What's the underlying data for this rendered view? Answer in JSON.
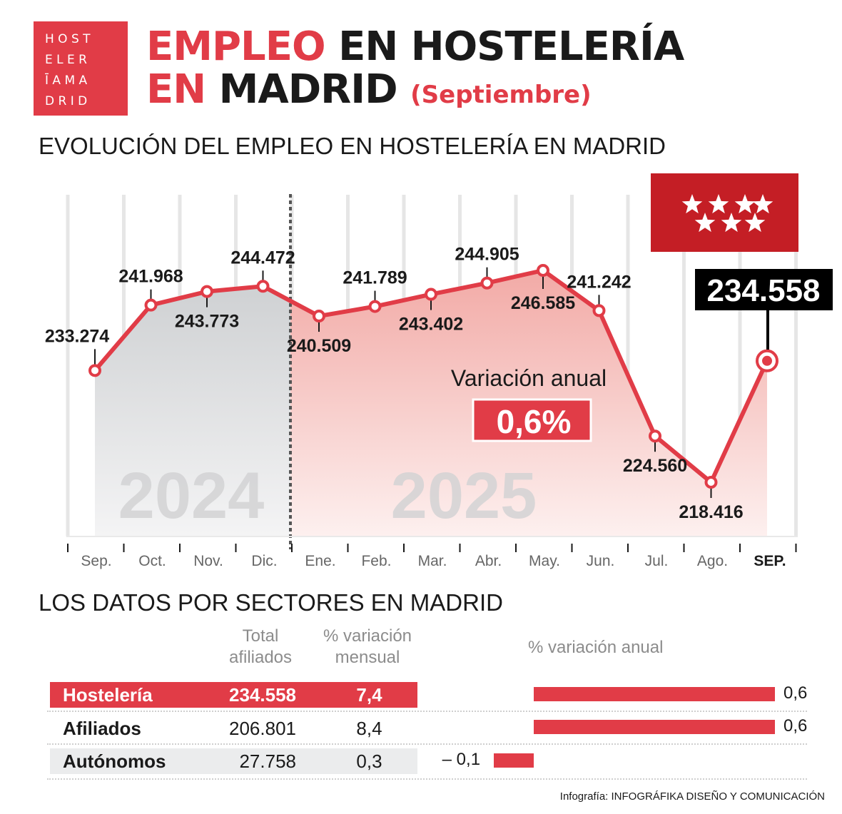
{
  "logo": {
    "rows": [
      "H O S T",
      "E L E R",
      "Ī A M A",
      "D R I D"
    ]
  },
  "header": {
    "title_part1": "EMPLEO",
    "title_part2": "EN HOSTELERÍA",
    "title_part3": "EN",
    "title_part4": "MADRID",
    "month": "(Septiembre)"
  },
  "section1_title": "EVOLUCIÓN DEL EMPLEO EN HOSTELERÍA EN MADRID",
  "section2_title": "LOS DATOS POR SECTORES EN MADRID",
  "colors": {
    "accent": "#e13c47",
    "flag": "#c41e25",
    "gray_area": "#d9dadb"
  },
  "chart_data": {
    "type": "line",
    "title": "EVOLUCIÓN DEL EMPLEO EN HOSTELERÍA EN MADRID",
    "categories": [
      "Sep.",
      "Oct.",
      "Nov.",
      "Dic.",
      "Ene.",
      "Feb.",
      "Mar.",
      "Abr.",
      "May.",
      "Jun.",
      "Jul.",
      "Ago.",
      "SEP."
    ],
    "values": [
      233274,
      241968,
      243773,
      244472,
      240509,
      241789,
      243402,
      244905,
      246585,
      241242,
      224560,
      218416,
      234558
    ],
    "labels": [
      "233.274",
      "241.968",
      "243.773",
      "244.472",
      "240.509",
      "241.789",
      "243.402",
      "244.905",
      "246.585",
      "241.242",
      "224.560",
      "218.416",
      "234.558"
    ],
    "label_sides": [
      "above",
      "above",
      "below",
      "above",
      "below",
      "above",
      "below",
      "above",
      "below",
      "above",
      "below",
      "below",
      "above"
    ],
    "years": [
      {
        "label": "2024",
        "from": 0,
        "to": 3
      },
      {
        "label": "2025",
        "from": 4,
        "to": 12
      }
    ],
    "highlight_value": "234.558",
    "variation_label": "Variación anual",
    "variation_value": "0,6%",
    "ylim": [
      200000,
      260000
    ]
  },
  "table": {
    "col_total": "Total afiliados",
    "col_mensual": "% variación mensual",
    "col_anual": "% variación anual",
    "rows": [
      {
        "name": "Hostelería",
        "total": "234.558",
        "mensual": "7,4",
        "anual": 0.6,
        "anual_label": "0,6"
      },
      {
        "name": "Afiliados",
        "total": "206.801",
        "mensual": "8,4",
        "anual": 0.6,
        "anual_label": "0,6"
      },
      {
        "name": "Autónomos",
        "total": "27.758",
        "mensual": "0,3",
        "anual": -0.1,
        "anual_label": "– 0,1"
      }
    ]
  },
  "credit": {
    "prefix": "Infografía:",
    "author": "INFOGRÁFIKA DISEÑO Y COMUNICACIÓN"
  }
}
